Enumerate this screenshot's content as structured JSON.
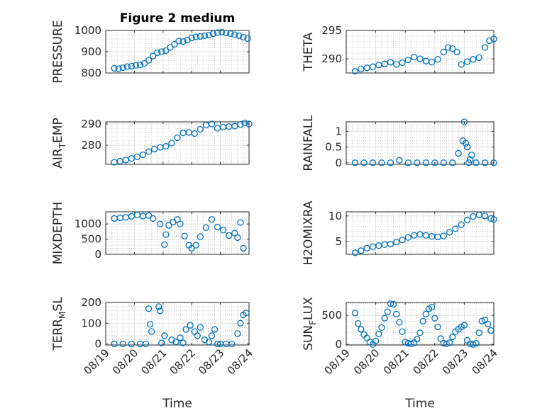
{
  "chart_data": [
    {
      "type": "scatter",
      "title": "Figure 2 medium",
      "ylabel": "PRESSURE",
      "xlabel": "",
      "ylim": [
        800,
        1000
      ],
      "yticks": [
        800,
        900,
        1000
      ],
      "xlim": [
        0,
        5
      ],
      "xticks": [
        0,
        1,
        2,
        3,
        4,
        5
      ],
      "x_tick_labels_shown": false,
      "grid": "major-and-minor",
      "x": [
        0.3,
        0.45,
        0.6,
        0.75,
        0.9,
        1.05,
        1.2,
        1.35,
        1.5,
        1.65,
        1.8,
        1.95,
        2.1,
        2.25,
        2.4,
        2.55,
        2.7,
        2.85,
        3.0,
        3.15,
        3.3,
        3.45,
        3.6,
        3.75,
        3.9,
        4.05,
        4.2,
        4.35,
        4.5,
        4.65,
        4.8,
        4.95
      ],
      "y": [
        822,
        820,
        825,
        830,
        832,
        836,
        838,
        845,
        860,
        880,
        895,
        900,
        905,
        920,
        935,
        950,
        948,
        955,
        965,
        970,
        972,
        975,
        978,
        985,
        990,
        992,
        988,
        985,
        980,
        975,
        968,
        962
      ]
    },
    {
      "type": "scatter",
      "title": "",
      "ylabel": "THETA",
      "xlabel": "",
      "ylim": [
        287.5,
        295
      ],
      "yticks": [
        290,
        295
      ],
      "xlim": [
        0,
        5
      ],
      "xticks": [
        0,
        1,
        2,
        3,
        4,
        5
      ],
      "x_tick_labels_shown": false,
      "grid": "major-and-minor",
      "x": [
        0.3,
        0.5,
        0.7,
        0.9,
        1.1,
        1.3,
        1.5,
        1.7,
        1.9,
        2.1,
        2.3,
        2.5,
        2.7,
        2.9,
        3.1,
        3.3,
        3.45,
        3.6,
        3.75,
        3.9,
        4.1,
        4.3,
        4.5,
        4.7,
        4.85,
        5.0
      ],
      "y": [
        287.8,
        288.2,
        288.4,
        288.6,
        288.9,
        289.1,
        289.4,
        289.0,
        289.3,
        289.8,
        290.3,
        290.0,
        289.6,
        289.4,
        289.9,
        291.2,
        292.0,
        291.8,
        291.2,
        289.0,
        289.5,
        289.9,
        290.2,
        292.0,
        293.2,
        293.5
      ]
    },
    {
      "type": "scatter",
      "title": "",
      "ylabel": "AIR_TEMP",
      "xlabel": "",
      "ylim": [
        271,
        291
      ],
      "yticks": [
        280,
        290
      ],
      "xlim": [
        0,
        5
      ],
      "xticks": [
        0,
        1,
        2,
        3,
        4,
        5
      ],
      "x_tick_labels_shown": false,
      "grid": "major-and-minor",
      "x": [
        0.3,
        0.5,
        0.7,
        0.9,
        1.1,
        1.3,
        1.5,
        1.7,
        1.9,
        2.1,
        2.3,
        2.5,
        2.7,
        2.9,
        3.1,
        3.3,
        3.5,
        3.7,
        3.9,
        4.1,
        4.3,
        4.5,
        4.7,
        4.85,
        5.0
      ],
      "y": [
        272,
        272.5,
        273,
        273.8,
        274.5,
        275.5,
        277,
        278.2,
        279,
        279.5,
        281,
        283.5,
        285.8,
        286,
        285.5,
        287.5,
        289.5,
        290,
        288,
        288.5,
        288.8,
        289,
        289.8,
        290.5,
        290
      ]
    },
    {
      "type": "scatter",
      "title": "",
      "ylabel": "RAINFALL",
      "xlabel": "",
      "ylim": [
        -0.05,
        1.3
      ],
      "yticks": [
        0,
        0.5,
        1
      ],
      "xlim": [
        0,
        5
      ],
      "xticks": [
        0,
        1,
        2,
        3,
        4,
        5
      ],
      "x_tick_labels_shown": false,
      "grid": "major-and-minor",
      "x": [
        0.3,
        0.6,
        0.9,
        1.2,
        1.5,
        1.8,
        2.1,
        2.4,
        2.7,
        3.0,
        3.3,
        3.6,
        3.8,
        3.95,
        4.0,
        4.05,
        4.1,
        4.15,
        4.2,
        4.25,
        4.4,
        4.7,
        5.0
      ],
      "y": [
        0,
        0,
        0,
        0,
        0,
        0.08,
        0,
        0,
        0,
        0,
        0,
        0,
        0.3,
        0.7,
        1.3,
        0.62,
        0.5,
        0,
        0.1,
        0.25,
        0,
        0,
        0
      ]
    },
    {
      "type": "scatter",
      "title": "",
      "ylabel": "MIXDEPTH",
      "xlabel": "",
      "ylim": [
        0,
        1400
      ],
      "yticks": [
        0,
        500,
        1000
      ],
      "xlim": [
        0,
        5
      ],
      "xticks": [
        0,
        1,
        2,
        3,
        4,
        5
      ],
      "x_tick_labels_shown": false,
      "grid": "major-and-minor",
      "x": [
        0.3,
        0.5,
        0.7,
        0.9,
        1.1,
        1.3,
        1.5,
        1.65,
        1.9,
        2.05,
        2.1,
        2.2,
        2.35,
        2.5,
        2.6,
        2.75,
        2.9,
        3.0,
        3.15,
        3.3,
        3.5,
        3.7,
        3.9,
        4.1,
        4.3,
        4.5,
        4.6,
        4.7,
        4.8
      ],
      "y": [
        1180,
        1200,
        1220,
        1250,
        1300,
        1260,
        1280,
        1180,
        1000,
        320,
        650,
        950,
        1060,
        1150,
        1000,
        600,
        300,
        200,
        300,
        580,
        880,
        1150,
        900,
        800,
        620,
        700,
        550,
        1050,
        200
      ]
    },
    {
      "type": "scatter",
      "title": "",
      "ylabel": "H2OMIXRA",
      "xlabel": "",
      "ylim": [
        2.5,
        10.8
      ],
      "yticks": [
        5,
        10
      ],
      "xlim": [
        0,
        5
      ],
      "xticks": [
        0,
        1,
        2,
        3,
        4,
        5
      ],
      "x_tick_labels_shown": false,
      "grid": "major-and-minor",
      "x": [
        0.3,
        0.5,
        0.7,
        0.9,
        1.1,
        1.3,
        1.5,
        1.7,
        1.9,
        2.1,
        2.3,
        2.5,
        2.7,
        2.9,
        3.1,
        3.3,
        3.5,
        3.7,
        3.9,
        4.1,
        4.3,
        4.5,
        4.7,
        4.9,
        5.0
      ],
      "y": [
        2.8,
        3.2,
        3.7,
        4.0,
        4.2,
        4.4,
        4.5,
        4.9,
        5.3,
        5.8,
        6.2,
        6.4,
        6.2,
        6.0,
        5.9,
        6.1,
        6.8,
        7.5,
        8.3,
        9.2,
        9.9,
        10.2,
        10.0,
        9.5,
        9.3
      ]
    },
    {
      "type": "scatter",
      "title": "",
      "ylabel": "TERR_MSL",
      "xlabel": "Time",
      "ylim": [
        -5,
        200
      ],
      "yticks": [
        0,
        100,
        200
      ],
      "xlim": [
        0,
        5
      ],
      "xticks": [
        0,
        1,
        2,
        3,
        4,
        5
      ],
      "x_tick_labels": [
        "08/19",
        "08/20",
        "08/21",
        "08/22",
        "08/23",
        "08/24"
      ],
      "grid": "major-and-minor",
      "x": [
        0.3,
        0.6,
        0.9,
        1.2,
        1.4,
        1.5,
        1.55,
        1.6,
        1.85,
        1.9,
        1.95,
        2.05,
        2.3,
        2.45,
        2.6,
        2.7,
        2.8,
        2.95,
        3.1,
        3.2,
        3.3,
        3.45,
        3.6,
        3.7,
        3.8,
        3.9,
        4.0,
        4.2,
        4.4,
        4.6,
        4.7,
        4.8,
        4.9
      ],
      "y": [
        0,
        0,
        0,
        0,
        0,
        170,
        95,
        60,
        180,
        160,
        5,
        40,
        20,
        10,
        30,
        5,
        70,
        90,
        60,
        40,
        80,
        20,
        10,
        40,
        70,
        0,
        0,
        0,
        0,
        50,
        100,
        140,
        150
      ]
    },
    {
      "type": "scatter",
      "title": "",
      "ylabel": "SUN_FLUX",
      "xlabel": "Time",
      "ylim": [
        -10,
        720
      ],
      "yticks": [
        0,
        500
      ],
      "xlim": [
        0,
        5
      ],
      "xticks": [
        0,
        1,
        2,
        3,
        4,
        5
      ],
      "x_tick_labels": [
        "08/19",
        "08/20",
        "08/21",
        "08/22",
        "08/23",
        "08/24"
      ],
      "grid": "major-and-minor",
      "x": [
        0.3,
        0.4,
        0.5,
        0.6,
        0.7,
        0.8,
        0.9,
        1.0,
        1.1,
        1.2,
        1.3,
        1.4,
        1.5,
        1.6,
        1.7,
        1.8,
        1.9,
        2.0,
        2.1,
        2.2,
        2.3,
        2.4,
        2.5,
        2.6,
        2.7,
        2.8,
        2.9,
        3.0,
        3.1,
        3.2,
        3.3,
        3.4,
        3.5,
        3.6,
        3.7,
        3.8,
        3.9,
        4.0,
        4.1,
        4.2,
        4.3,
        4.4,
        4.5,
        4.6,
        4.7,
        4.8,
        4.9
      ],
      "y": [
        540,
        360,
        260,
        170,
        110,
        40,
        0,
        60,
        180,
        290,
        450,
        560,
        700,
        690,
        520,
        380,
        220,
        40,
        20,
        10,
        30,
        90,
        200,
        400,
        520,
        610,
        640,
        450,
        300,
        100,
        20,
        10,
        30,
        130,
        220,
        260,
        300,
        330,
        70,
        10,
        0,
        20,
        200,
        400,
        420,
        350,
        240
      ]
    }
  ]
}
